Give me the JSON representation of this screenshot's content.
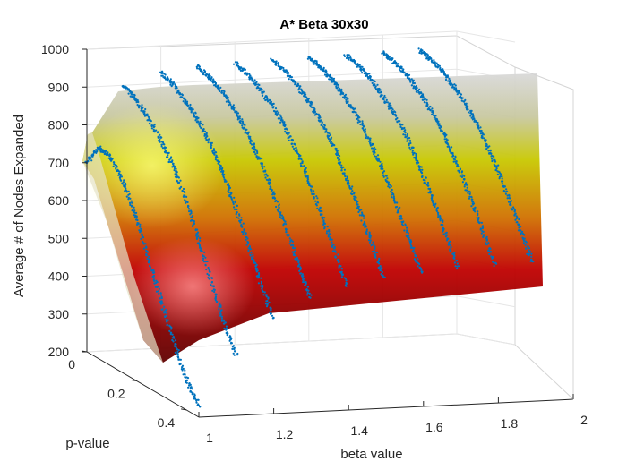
{
  "chart_data": {
    "type": "surface",
    "title": "A* Beta 30x30",
    "xlabel": "beta value",
    "ylabel": "p-value",
    "zlabel": "Average # of Nodes Expanded",
    "xlim": [
      1,
      2
    ],
    "ylim": [
      0,
      0.45
    ],
    "zlim": [
      200,
      1000
    ],
    "x_ticks": [
      "1",
      "1.2",
      "1.4",
      "1.6",
      "1.8",
      "2"
    ],
    "y_ticks": [
      "0",
      "0.2",
      "0.4"
    ],
    "z_ticks": [
      "200",
      "300",
      "400",
      "500",
      "600",
      "700",
      "800",
      "900",
      "1000"
    ],
    "grid": true,
    "colormap": "hot",
    "scatter_color": "#0072bd",
    "beta_slices": [
      1.0,
      1.1,
      1.2,
      1.3,
      1.4,
      1.5,
      1.6,
      1.7,
      1.8,
      1.9
    ],
    "series": [
      {
        "beta": 1.0,
        "p": [
          0,
          0.05,
          0.1,
          0.15,
          0.2,
          0.25,
          0.3,
          0.35,
          0.4,
          0.45
        ],
        "z": [
          700,
          760,
          750,
          700,
          630,
          540,
          450,
          360,
          280,
          230
        ]
      },
      {
        "beta": 1.1,
        "p": [
          0,
          0.05,
          0.1,
          0.15,
          0.2,
          0.25,
          0.3,
          0.35,
          0.4,
          0.45
        ],
        "z": [
          900,
          880,
          850,
          810,
          760,
          690,
          610,
          520,
          430,
          360
        ]
      },
      {
        "beta": 1.2,
        "p": [
          0,
          0.05,
          0.1,
          0.15,
          0.2,
          0.25,
          0.3,
          0.35,
          0.4,
          0.45
        ],
        "z": [
          930,
          915,
          890,
          860,
          815,
          760,
          690,
          610,
          530,
          455
        ]
      },
      {
        "beta": 1.3,
        "p": [
          0,
          0.05,
          0.1,
          0.15,
          0.2,
          0.25,
          0.3,
          0.35,
          0.4,
          0.45
        ],
        "z": [
          940,
          930,
          910,
          880,
          840,
          790,
          725,
          655,
          580,
          505
        ]
      },
      {
        "beta": 1.4,
        "p": [
          0,
          0.05,
          0.1,
          0.15,
          0.2,
          0.25,
          0.3,
          0.35,
          0.4,
          0.45
        ],
        "z": [
          945,
          935,
          915,
          890,
          855,
          805,
          745,
          675,
          605,
          530
        ]
      },
      {
        "beta": 1.5,
        "p": [
          0,
          0.05,
          0.1,
          0.15,
          0.2,
          0.25,
          0.3,
          0.35,
          0.4,
          0.45
        ],
        "z": [
          948,
          940,
          920,
          895,
          860,
          815,
          755,
          690,
          620,
          545
        ]
      },
      {
        "beta": 1.6,
        "p": [
          0,
          0.05,
          0.1,
          0.15,
          0.2,
          0.25,
          0.3,
          0.35,
          0.4,
          0.45
        ],
        "z": [
          950,
          942,
          925,
          898,
          865,
          820,
          762,
          698,
          628,
          555
        ]
      },
      {
        "beta": 1.7,
        "p": [
          0,
          0.05,
          0.1,
          0.15,
          0.2,
          0.25,
          0.3,
          0.35,
          0.4,
          0.45
        ],
        "z": [
          952,
          944,
          927,
          900,
          868,
          824,
          768,
          704,
          634,
          562
        ]
      },
      {
        "beta": 1.8,
        "p": [
          0,
          0.05,
          0.1,
          0.15,
          0.2,
          0.25,
          0.3,
          0.35,
          0.4,
          0.45
        ],
        "z": [
          954,
          946,
          929,
          902,
          870,
          828,
          772,
          708,
          638,
          566
        ]
      },
      {
        "beta": 1.9,
        "p": [
          0,
          0.05,
          0.1,
          0.15,
          0.2,
          0.25,
          0.3,
          0.35,
          0.4,
          0.45
        ],
        "z": [
          955,
          947,
          930,
          904,
          872,
          830,
          775,
          712,
          642,
          570
        ]
      }
    ]
  }
}
